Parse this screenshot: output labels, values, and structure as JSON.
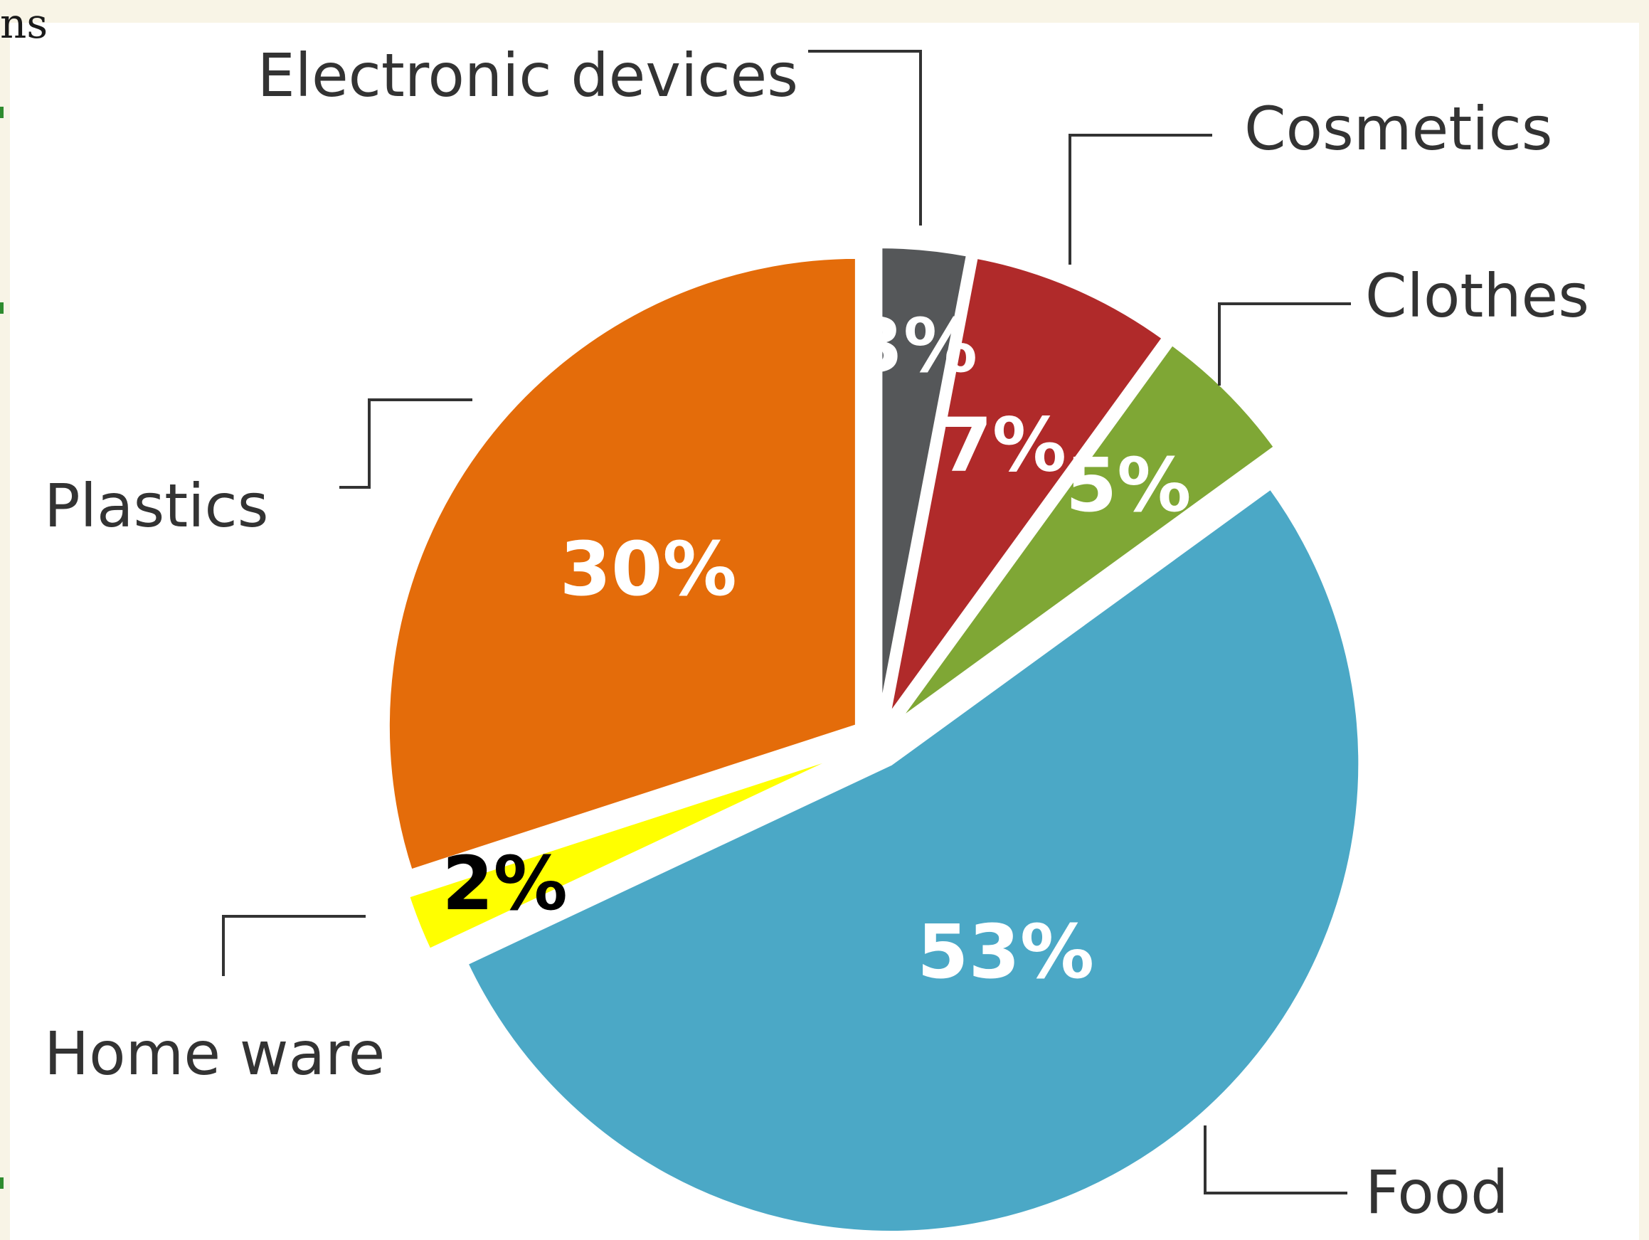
{
  "fragment_text": "ns",
  "chart_data": {
    "type": "pie",
    "categories": [
      "Electronic devices",
      "Cosmetics",
      "Clothes",
      "Food",
      "Home ware",
      "Plastics"
    ],
    "values": [
      3,
      7,
      5,
      53,
      2,
      30
    ],
    "value_labels": [
      "3%",
      "7%",
      "5%",
      "53%",
      "2%",
      "30%"
    ],
    "colors": [
      "#555759",
      "#b02a2a",
      "#7fa735",
      "#4ba8c6",
      "#ffff00",
      "#e46c0a"
    ],
    "label_colors": [
      "#ffffff",
      "#ffffff",
      "#ffffff",
      "#ffffff",
      "#000000",
      "#ffffff"
    ],
    "title": "",
    "legend": "none"
  }
}
